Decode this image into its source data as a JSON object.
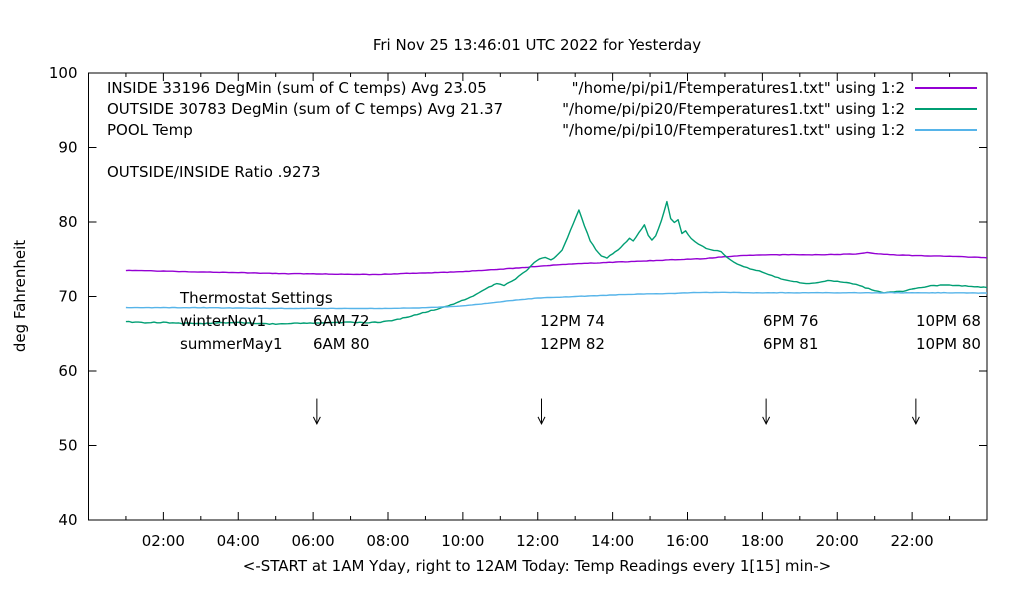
{
  "title": "Fri Nov 25 13:46:01 UTC 2022 for Yesterday",
  "axes": {
    "ylabel": "deg Fahrenheit",
    "xlabel": "<-START at 1AM Yday, right to 12AM Today:  Temp Readings every 1[15] min->"
  },
  "legend": {
    "rows": [
      {
        "label": "INSIDE 33196 DegMin (sum of C temps) Avg 23.05",
        "source": "\"/home/pi/pi1/Ftemperatures1.txt\" using 1:2",
        "color": "#9400D3"
      },
      {
        "label": "OUTSIDE 30783 DegMin (sum of C temps) Avg 21.37",
        "source": "\"/home/pi/pi20/Ftemperatures1.txt\" using 1:2",
        "color": "#009E73"
      },
      {
        "label": "POOL Temp",
        "source": "\"/home/pi/pi10/Ftemperatures1.txt\" using 1:2",
        "color": "#56B4E9"
      }
    ]
  },
  "annotations": {
    "ratio": "OUTSIDE/INSIDE Ratio .9273",
    "thermostat": {
      "heading": "Thermostat Settings",
      "rows": [
        {
          "label": "winterNov1",
          "values": [
            "6AM 72",
            "12PM 74",
            "6PM 76",
            "10PM 68"
          ]
        },
        {
          "label": "summerMay1",
          "values": [
            "6AM 80",
            "12PM 82",
            "6PM 81",
            "10PM 80"
          ]
        }
      ]
    }
  },
  "chart_data": {
    "type": "line",
    "title": "Fri Nov 25 13:46:01 UTC 2022 for Yesterday",
    "xlabel": "<-START at 1AM Yday, right to 12AM Today:  Temp Readings every 1[15] min->",
    "ylabel": "deg Fahrenheit",
    "x_unit": "hour of day, 01:00 yesterday through 24:00",
    "xlim": [
      0,
      24
    ],
    "ylim": [
      40,
      100
    ],
    "grid": false,
    "legend_position": "top-inside",
    "y_ticks": [
      40,
      50,
      60,
      70,
      80,
      90,
      100
    ],
    "x_major_ticks": [
      {
        "h": 2,
        "label": "02:00"
      },
      {
        "h": 4,
        "label": "04:00"
      },
      {
        "h": 6,
        "label": "06:00"
      },
      {
        "h": 8,
        "label": "08:00"
      },
      {
        "h": 10,
        "label": "10:00"
      },
      {
        "h": 12,
        "label": "12:00"
      },
      {
        "h": 14,
        "label": "14:00"
      },
      {
        "h": 16,
        "label": "16:00"
      },
      {
        "h": 18,
        "label": "18:00"
      },
      {
        "h": 20,
        "label": "20:00"
      },
      {
        "h": 22,
        "label": "22:00"
      }
    ],
    "x_minor_hours": [
      1,
      3,
      5,
      7,
      9,
      11,
      13,
      15,
      17,
      19,
      21,
      23
    ],
    "series": [
      {
        "id": "inside",
        "name": "INSIDE",
        "color": "#9400D3",
        "wiggle": 0.06,
        "points": [
          [
            1,
            73.5
          ],
          [
            1.5,
            73.45
          ],
          [
            2,
            73.4
          ],
          [
            2.5,
            73.35
          ],
          [
            3,
            73.3
          ],
          [
            3.5,
            73.25
          ],
          [
            4,
            73.2
          ],
          [
            4.5,
            73.15
          ],
          [
            5,
            73.1
          ],
          [
            5.5,
            73.05
          ],
          [
            6,
            73.05
          ],
          [
            6.5,
            73.0
          ],
          [
            7,
            73.0
          ],
          [
            7.5,
            72.95
          ],
          [
            8,
            73.0
          ],
          [
            8.5,
            73.1
          ],
          [
            9,
            73.15
          ],
          [
            9.5,
            73.25
          ],
          [
            10,
            73.35
          ],
          [
            10.5,
            73.5
          ],
          [
            11,
            73.65
          ],
          [
            11.5,
            73.85
          ],
          [
            12,
            74.05
          ],
          [
            12.5,
            74.25
          ],
          [
            13,
            74.4
          ],
          [
            13.5,
            74.5
          ],
          [
            14,
            74.6
          ],
          [
            14.5,
            74.7
          ],
          [
            15,
            74.8
          ],
          [
            15.5,
            74.9
          ],
          [
            16,
            75.0
          ],
          [
            16.5,
            75.1
          ],
          [
            17,
            75.35
          ],
          [
            17.5,
            75.5
          ],
          [
            18,
            75.6
          ],
          [
            19,
            75.6
          ],
          [
            19.5,
            75.6
          ],
          [
            20,
            75.65
          ],
          [
            20.5,
            75.7
          ],
          [
            20.8,
            75.9
          ],
          [
            21,
            75.75
          ],
          [
            21.5,
            75.6
          ],
          [
            22,
            75.5
          ],
          [
            22.5,
            75.45
          ],
          [
            23,
            75.4
          ],
          [
            23.5,
            75.3
          ],
          [
            24,
            75.2
          ]
        ]
      },
      {
        "id": "outside",
        "name": "OUTSIDE",
        "color": "#009E73",
        "wiggle": 0.12,
        "points": [
          [
            1,
            66.6
          ],
          [
            1.5,
            66.5
          ],
          [
            2,
            66.5
          ],
          [
            2.5,
            66.4
          ],
          [
            3,
            66.35
          ],
          [
            3.5,
            66.45
          ],
          [
            4,
            66.5
          ],
          [
            4.5,
            66.35
          ],
          [
            5,
            66.3
          ],
          [
            5.5,
            66.4
          ],
          [
            6,
            66.45
          ],
          [
            6.5,
            66.5
          ],
          [
            7,
            66.55
          ],
          [
            7.5,
            66.5
          ],
          [
            7.8,
            66.55
          ],
          [
            8.1,
            66.8
          ],
          [
            8.4,
            67.1
          ],
          [
            8.7,
            67.5
          ],
          [
            9,
            67.9
          ],
          [
            9.3,
            68.3
          ],
          [
            9.6,
            68.7
          ],
          [
            9.9,
            69.3
          ],
          [
            10.2,
            69.9
          ],
          [
            10.5,
            70.7
          ],
          [
            10.7,
            71.3
          ],
          [
            10.9,
            71.7
          ],
          [
            11.1,
            71.5
          ],
          [
            11.3,
            72.0
          ],
          [
            11.5,
            72.7
          ],
          [
            11.7,
            73.5
          ],
          [
            11.9,
            74.5
          ],
          [
            12.05,
            75.1
          ],
          [
            12.2,
            75.2
          ],
          [
            12.35,
            74.9
          ],
          [
            12.5,
            75.4
          ],
          [
            12.65,
            76.2
          ],
          [
            12.8,
            78.0
          ],
          [
            12.95,
            79.8
          ],
          [
            13.1,
            81.6
          ],
          [
            13.25,
            79.5
          ],
          [
            13.4,
            77.5
          ],
          [
            13.55,
            76.3
          ],
          [
            13.7,
            75.4
          ],
          [
            13.85,
            75.2
          ],
          [
            14.0,
            75.7
          ],
          [
            14.15,
            76.3
          ],
          [
            14.3,
            77.0
          ],
          [
            14.45,
            77.8
          ],
          [
            14.55,
            77.4
          ],
          [
            14.7,
            78.6
          ],
          [
            14.85,
            79.6
          ],
          [
            14.95,
            78.2
          ],
          [
            15.05,
            77.6
          ],
          [
            15.15,
            78.1
          ],
          [
            15.3,
            80.2
          ],
          [
            15.45,
            82.7
          ],
          [
            15.55,
            80.4
          ],
          [
            15.65,
            79.9
          ],
          [
            15.75,
            80.3
          ],
          [
            15.85,
            78.5
          ],
          [
            15.95,
            78.8
          ],
          [
            16.1,
            77.8
          ],
          [
            16.3,
            77.0
          ],
          [
            16.5,
            76.5
          ],
          [
            16.7,
            76.2
          ],
          [
            16.9,
            76.0
          ],
          [
            17.05,
            75.3
          ],
          [
            17.25,
            74.6
          ],
          [
            17.5,
            74.0
          ],
          [
            17.75,
            73.6
          ],
          [
            18,
            73.3
          ],
          [
            18.25,
            72.8
          ],
          [
            18.5,
            72.4
          ],
          [
            18.75,
            72.1
          ],
          [
            19,
            71.9
          ],
          [
            19.25,
            71.7
          ],
          [
            19.5,
            71.9
          ],
          [
            19.75,
            72.1
          ],
          [
            20,
            72.0
          ],
          [
            20.25,
            71.9
          ],
          [
            20.5,
            71.6
          ],
          [
            20.75,
            71.2
          ],
          [
            21,
            70.8
          ],
          [
            21.25,
            70.5
          ],
          [
            21.5,
            70.6
          ],
          [
            21.75,
            70.7
          ],
          [
            22,
            71.0
          ],
          [
            22.25,
            71.2
          ],
          [
            22.5,
            71.4
          ],
          [
            22.75,
            71.5
          ],
          [
            23,
            71.5
          ],
          [
            23.5,
            71.4
          ],
          [
            24,
            71.2
          ]
        ]
      },
      {
        "id": "pool",
        "name": "POOL Temp",
        "color": "#56B4E9",
        "wiggle": 0.05,
        "points": [
          [
            1,
            68.5
          ],
          [
            2,
            68.5
          ],
          [
            3,
            68.5
          ],
          [
            4,
            68.45
          ],
          [
            5,
            68.4
          ],
          [
            6,
            68.4
          ],
          [
            7,
            68.4
          ],
          [
            8,
            68.4
          ],
          [
            8.5,
            68.45
          ],
          [
            9,
            68.5
          ],
          [
            9.5,
            68.6
          ],
          [
            10,
            68.75
          ],
          [
            10.5,
            69.0
          ],
          [
            11,
            69.3
          ],
          [
            11.5,
            69.55
          ],
          [
            12,
            69.8
          ],
          [
            12.5,
            69.9
          ],
          [
            13,
            70.0
          ],
          [
            13.5,
            70.1
          ],
          [
            14,
            70.2
          ],
          [
            14.5,
            70.3
          ],
          [
            15,
            70.35
          ],
          [
            15.5,
            70.4
          ],
          [
            16,
            70.5
          ],
          [
            16.5,
            70.55
          ],
          [
            17,
            70.55
          ],
          [
            18,
            70.5
          ],
          [
            19,
            70.5
          ],
          [
            20,
            70.5
          ],
          [
            21,
            70.5
          ],
          [
            22,
            70.5
          ],
          [
            23,
            70.5
          ],
          [
            24,
            70.45
          ]
        ]
      }
    ],
    "arrows": {
      "hours": [
        6.1,
        12.1,
        18.1,
        22.1
      ],
      "from_f": 56.3,
      "to_f": 52.9
    }
  }
}
